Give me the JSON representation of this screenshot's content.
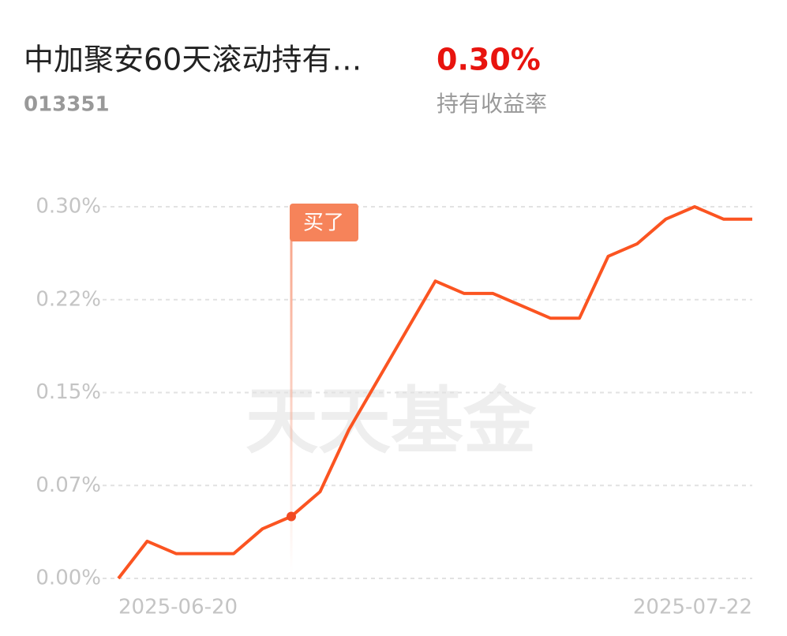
{
  "header": {
    "name": "中加聚安60天滚动持有…",
    "code": "013351",
    "return": "0.30%",
    "return_label": "持有收益率"
  },
  "chart_data": {
    "type": "line",
    "watermark": "天天基金",
    "categories": [
      "2025-06-20",
      null,
      null,
      null,
      null,
      null,
      null,
      null,
      null,
      null,
      null,
      null,
      null,
      null,
      null,
      null,
      null,
      null,
      null,
      null,
      null,
      null,
      "2025-07-22"
    ],
    "values": [
      0,
      0.03,
      0.02,
      0.02,
      0.02,
      0.04,
      0.05,
      0.07,
      0.12,
      0.16,
      0.2,
      0.24,
      0.23,
      0.23,
      0.22,
      0.21,
      0.21,
      0.26,
      0.27,
      0.29,
      0.3,
      0.29,
      0.29
    ],
    "color": "#fb5421",
    "ylim": [
      0,
      0.3
    ],
    "yticks": [
      {
        "value": 0,
        "label": "0.00%"
      },
      {
        "value": 0.075,
        "label": "0.07%"
      },
      {
        "value": 0.15,
        "label": "0.15%"
      },
      {
        "value": 0.225,
        "label": "0.22%"
      },
      {
        "value": 0.3,
        "label": "0.30%"
      }
    ],
    "grid": true,
    "annotations": [
      {
        "index": 6,
        "text": "买了"
      }
    ]
  }
}
